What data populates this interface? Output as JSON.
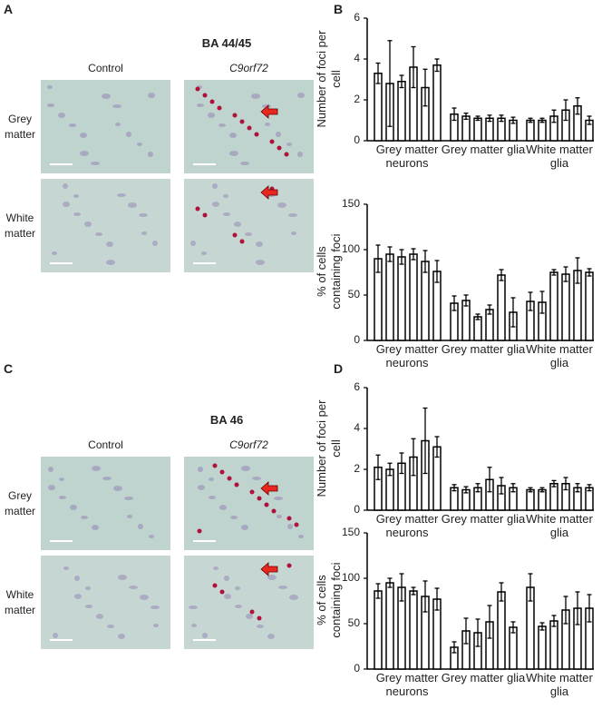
{
  "panel_labels": [
    "A",
    "B",
    "C",
    "D"
  ],
  "sections": [
    {
      "title": "BA 44/45",
      "columns": [
        "Control",
        "C9orf72"
      ],
      "rows": [
        "Grey matter",
        "White matter"
      ]
    },
    {
      "title": "BA 46",
      "columns": [
        "Control",
        "C9orf72"
      ],
      "rows": [
        "Grey matter",
        "White matter"
      ]
    }
  ],
  "chart_data": [
    {
      "type": "bar",
      "ylabel": "Number of foci per cell",
      "categories": [
        "Grey matter neurons",
        "Grey matter glia",
        "White matter glia"
      ],
      "color": "#ffffff",
      "values": [
        [
          3.3,
          2.8,
          2.9,
          3.6,
          2.6,
          3.7
        ],
        [
          1.3,
          1.2,
          1.1,
          1.1,
          1.1,
          1.0
        ],
        [
          1.0,
          1.0,
          1.2,
          1.5,
          1.7,
          1.0
        ]
      ],
      "errors": [
        [
          0.5,
          2.1,
          0.3,
          1.0,
          0.9,
          0.3
        ],
        [
          0.3,
          0.15,
          0.1,
          0.15,
          0.15,
          0.15
        ],
        [
          0.1,
          0.1,
          0.3,
          0.5,
          0.4,
          0.2
        ]
      ],
      "ylim": [
        0,
        6
      ],
      "yticks": [
        0,
        2,
        4,
        6
      ]
    },
    {
      "type": "bar",
      "ylabel": "% of cells containing foci",
      "categories": [
        "Grey matter neurons",
        "Grey matter glia",
        "White matter glia"
      ],
      "color": "#ffffff",
      "values": [
        [
          90,
          95,
          92,
          95,
          87,
          76
        ],
        [
          41,
          44,
          26,
          34,
          72,
          31
        ],
        [
          43,
          42,
          75,
          73,
          77,
          75
        ]
      ],
      "errors": [
        [
          15,
          8,
          8,
          6,
          12,
          12
        ],
        [
          8,
          6,
          3,
          5,
          6,
          16
        ],
        [
          10,
          12,
          3,
          8,
          14,
          4
        ]
      ],
      "ylim": [
        0,
        150
      ],
      "yticks": [
        0,
        50,
        100,
        150
      ]
    },
    {
      "type": "bar",
      "ylabel": "Number of foci per cell",
      "categories": [
        "Grey matter neurons",
        "Grey matter glia",
        "White matter glia"
      ],
      "color": "#ffffff",
      "values": [
        [
          2.1,
          2.0,
          2.3,
          2.6,
          3.4,
          3.1
        ],
        [
          1.1,
          1.0,
          1.1,
          1.5,
          1.2,
          1.1
        ],
        [
          1.0,
          1.0,
          1.3,
          1.3,
          1.1,
          1.1
        ]
      ],
      "errors": [
        [
          0.6,
          0.3,
          0.5,
          0.9,
          1.6,
          0.5
        ],
        [
          0.15,
          0.15,
          0.2,
          0.6,
          0.4,
          0.2
        ],
        [
          0.1,
          0.1,
          0.15,
          0.3,
          0.2,
          0.15
        ]
      ],
      "ylim": [
        0,
        6
      ],
      "yticks": [
        0,
        2,
        4,
        6
      ]
    },
    {
      "type": "bar",
      "ylabel": "% of cells containing foci",
      "categories": [
        "Grey matter neurons",
        "Grey matter glia",
        "White matter glia"
      ],
      "color": "#ffffff",
      "values": [
        [
          86,
          95,
          90,
          86,
          80,
          77
        ],
        [
          24,
          42,
          40,
          52,
          85,
          46
        ],
        [
          90,
          47,
          53,
          65,
          67,
          67
        ]
      ],
      "errors": [
        [
          8,
          5,
          15,
          4,
          17,
          12
        ],
        [
          6,
          14,
          15,
          18,
          10,
          6
        ],
        [
          15,
          4,
          6,
          15,
          18,
          15
        ]
      ],
      "ylim": [
        0,
        150
      ],
      "yticks": [
        0,
        50,
        100,
        150
      ]
    }
  ]
}
